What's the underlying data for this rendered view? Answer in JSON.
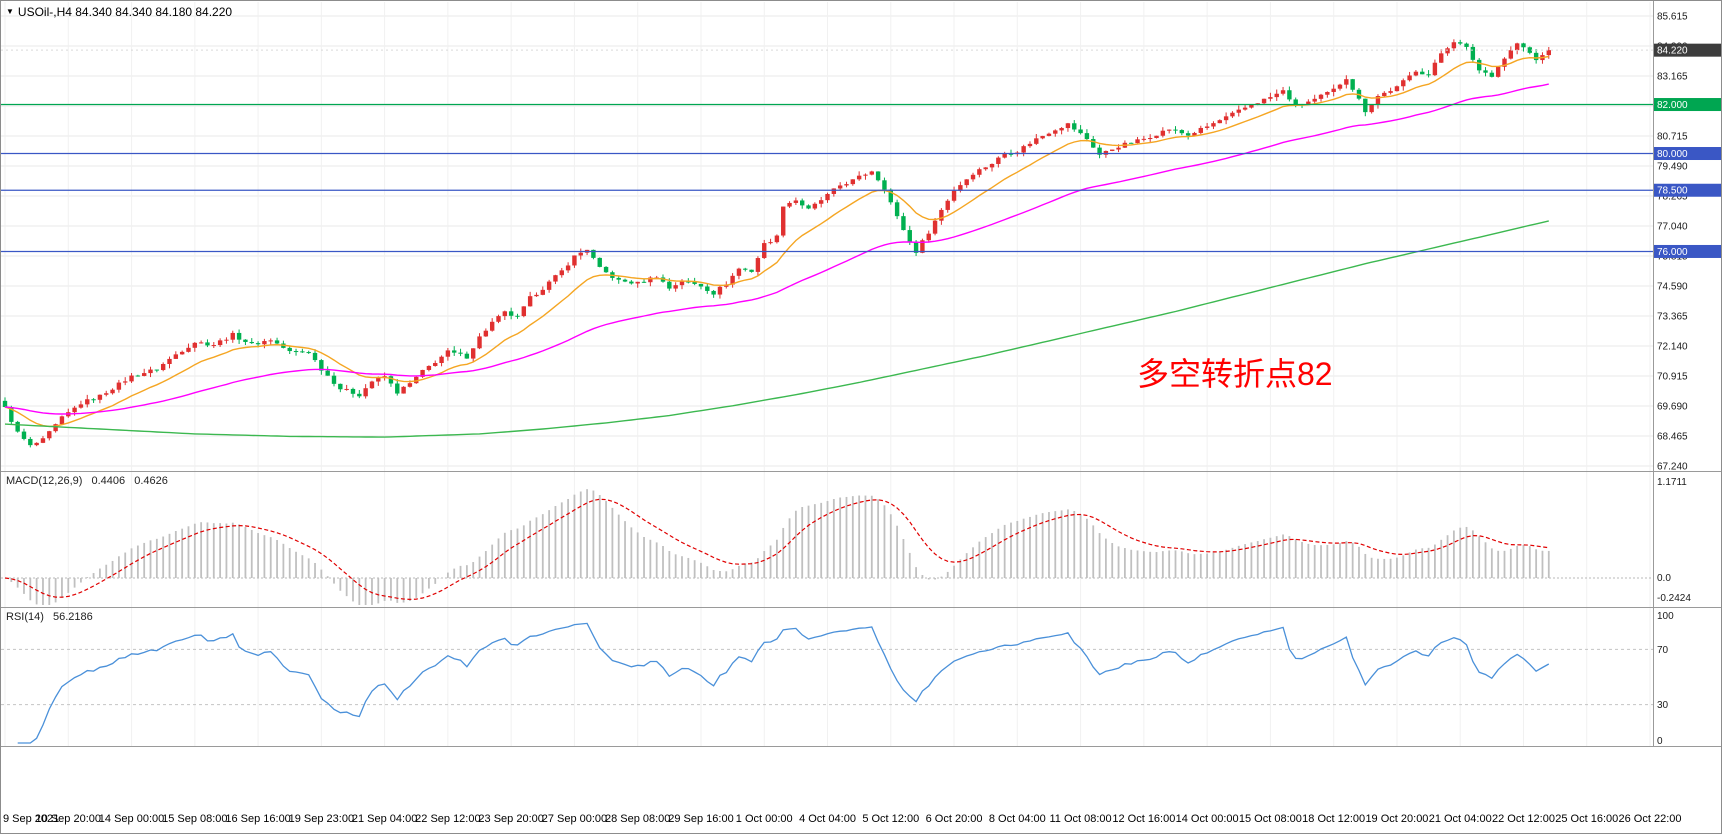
{
  "icons": {
    "collapse_triangle": "▼"
  },
  "chart_data": [
    {
      "type": "candlestick",
      "title": "USOil-,H4 84.340 84.340 84.180 84.220",
      "symbol": "USOil-",
      "timeframe": "H4",
      "ohlc": {
        "open": "84.340",
        "high": "84.340",
        "low": "84.180",
        "close": "84.220"
      },
      "y_axis": {
        "top": 85.615,
        "step": 1.225,
        "labels": [
          "85.615",
          "84.390",
          "83.165",
          "81.940",
          "80.715",
          "79.490",
          "78.265",
          "77.040",
          "75.815",
          "74.590",
          "73.365",
          "72.140",
          "70.915",
          "69.690",
          "68.465",
          "67.240"
        ]
      },
      "x_axis": {
        "bars_per_label": 10,
        "labels": [
          "9 Sep 2021",
          "10 Sep 20:00",
          "14 Sep 00:00",
          "15 Sep 08:00",
          "16 Sep 16:00",
          "19 Sep 23:00",
          "21 Sep 04:00",
          "22 Sep 12:00",
          "23 Sep 20:00",
          "27 Sep 00:00",
          "28 Sep 08:00",
          "29 Sep 16:00",
          "1 Oct 00:00",
          "4 Oct 04:00",
          "5 Oct 12:00",
          "6 Oct 20:00",
          "8 Oct 04:00",
          "11 Oct 08:00",
          "12 Oct 16:00",
          "14 Oct 00:00",
          "15 Oct 08:00",
          "18 Oct 12:00",
          "19 Oct 20:00",
          "21 Oct 04:00",
          "22 Oct 12:00",
          "25 Oct 16:00",
          "26 Oct 22:00"
        ]
      },
      "visible_bars": 245,
      "price_path": [
        [
          0,
          69.6
        ],
        [
          2,
          68.6
        ],
        [
          4,
          68.05
        ],
        [
          6,
          68.3
        ],
        [
          9,
          69.2
        ],
        [
          12,
          69.8
        ],
        [
          15,
          70.1
        ],
        [
          20,
          70.9
        ],
        [
          24,
          71.2
        ],
        [
          27,
          71.8
        ],
        [
          30,
          72.3
        ],
        [
          33,
          72.2
        ],
        [
          36,
          72.6
        ],
        [
          39,
          72.2
        ],
        [
          42,
          72.4
        ],
        [
          45,
          71.9
        ],
        [
          48,
          71.9
        ],
        [
          50,
          71.2
        ],
        [
          53,
          70.4
        ],
        [
          56,
          70.15
        ],
        [
          58,
          70.7
        ],
        [
          60,
          70.9
        ],
        [
          62,
          70.25
        ],
        [
          64,
          70.6
        ],
        [
          66,
          71.1
        ],
        [
          68,
          71.5
        ],
        [
          70,
          71.9
        ],
        [
          73,
          71.7
        ],
        [
          75,
          72.5
        ],
        [
          77,
          73.1
        ],
        [
          79,
          73.5
        ],
        [
          81,
          73.3
        ],
        [
          83,
          74.1
        ],
        [
          85,
          74.5
        ],
        [
          88,
          75.2
        ],
        [
          90,
          75.8
        ],
        [
          92,
          76.1
        ],
        [
          94,
          75.3
        ],
        [
          97,
          74.8
        ],
        [
          100,
          74.7
        ],
        [
          103,
          75.0
        ],
        [
          105,
          74.5
        ],
        [
          107,
          74.8
        ],
        [
          110,
          74.6
        ],
        [
          112,
          74.3
        ],
        [
          114,
          74.7
        ],
        [
          116,
          75.3
        ],
        [
          118,
          75.2
        ],
        [
          120,
          76.3
        ],
        [
          122,
          76.6
        ],
        [
          123,
          77.9
        ],
        [
          125,
          78.1
        ],
        [
          127,
          77.7
        ],
        [
          130,
          78.3
        ],
        [
          132,
          78.7
        ],
        [
          134,
          78.9
        ],
        [
          137,
          79.3
        ],
        [
          139,
          78.6
        ],
        [
          141,
          77.4
        ],
        [
          143,
          76.4
        ],
        [
          144,
          76.0
        ],
        [
          146,
          76.8
        ],
        [
          148,
          77.7
        ],
        [
          150,
          78.5
        ],
        [
          153,
          79.2
        ],
        [
          156,
          79.6
        ],
        [
          158,
          80.0
        ],
        [
          160,
          80.1
        ],
        [
          163,
          80.6
        ],
        [
          166,
          81.0
        ],
        [
          168,
          81.2
        ],
        [
          171,
          80.6
        ],
        [
          173,
          79.95
        ],
        [
          176,
          80.3
        ],
        [
          180,
          80.6
        ],
        [
          184,
          81.0
        ],
        [
          187,
          80.75
        ],
        [
          190,
          81.1
        ],
        [
          194,
          81.6
        ],
        [
          197,
          82.0
        ],
        [
          200,
          82.3
        ],
        [
          202,
          82.55
        ],
        [
          204,
          81.95
        ],
        [
          207,
          82.2
        ],
        [
          210,
          82.6
        ],
        [
          212,
          83.1
        ],
        [
          214,
          82.2
        ],
        [
          215,
          81.75
        ],
        [
          217,
          82.35
        ],
        [
          220,
          82.7
        ],
        [
          223,
          83.4
        ],
        [
          225,
          83.2
        ],
        [
          227,
          84.1
        ],
        [
          229,
          84.6
        ],
        [
          231,
          84.3
        ],
        [
          233,
          83.4
        ],
        [
          235,
          83.2
        ],
        [
          237,
          83.9
        ],
        [
          239,
          84.5
        ],
        [
          241,
          84.1
        ],
        [
          242,
          83.8
        ],
        [
          244,
          84.22
        ]
      ],
      "moving_averages": [
        {
          "name": "fast",
          "type": "ema",
          "period": 13,
          "color": "#F5A623"
        },
        {
          "name": "medium",
          "type": "ema",
          "period": 55,
          "color": "#FF00FF"
        },
        {
          "name": "slow",
          "type": "path",
          "color": "#3CB850",
          "path": [
            [
              0,
              68.95
            ],
            [
              15,
              68.75
            ],
            [
              30,
              68.55
            ],
            [
              45,
              68.45
            ],
            [
              60,
              68.42
            ],
            [
              75,
              68.55
            ],
            [
              85,
              68.75
            ],
            [
              95,
              69.0
            ],
            [
              105,
              69.3
            ],
            [
              115,
              69.7
            ],
            [
              125,
              70.15
            ],
            [
              135,
              70.65
            ],
            [
              145,
              71.2
            ],
            [
              155,
              71.75
            ],
            [
              165,
              72.35
            ],
            [
              175,
              72.95
            ],
            [
              185,
              73.55
            ],
            [
              195,
              74.2
            ],
            [
              205,
              74.85
            ],
            [
              215,
              75.5
            ],
            [
              225,
              76.1
            ],
            [
              235,
              76.7
            ],
            [
              244,
              77.25
            ]
          ]
        }
      ],
      "levels": [
        {
          "price": 82.0,
          "label": "82.000",
          "color": "#00A651"
        },
        {
          "price": 80.0,
          "label": "80.000",
          "color": "#3A57C5"
        },
        {
          "price": 78.5,
          "label": "78.500",
          "color": "#3A57C5"
        },
        {
          "price": 76.0,
          "label": "76.000",
          "color": "#3A57C5"
        }
      ],
      "current_price": {
        "value": 84.22,
        "label": "84.220",
        "badge_color": "#3C3C3C"
      },
      "candle_colors": {
        "up": "#E03030",
        "down": "#00B050"
      },
      "annotation": {
        "text": "多空转折点82",
        "color": "#FF0000"
      }
    },
    {
      "type": "macd",
      "label": "MACD(12,26,9)",
      "value_main": "0.4406",
      "value_signal": "0.4626",
      "params": {
        "fast": 12,
        "slow": 26,
        "signal": 9
      },
      "y_axis_labels": [
        "1.1711",
        "0.0",
        "-0.2424"
      ],
      "y_max": 1.1711,
      "y_min": -0.2424,
      "histogram_color": "#C0C0C0",
      "signal_color": "#E00000"
    },
    {
      "type": "rsi",
      "label": "RSI(14)",
      "value": "56.2186",
      "period": 14,
      "y_axis_labels": [
        "100",
        "70",
        "30",
        "0"
      ],
      "label_values": [
        100,
        70,
        30,
        0
      ],
      "levels": [
        70,
        30
      ],
      "line_color": "#4A90D9"
    }
  ]
}
